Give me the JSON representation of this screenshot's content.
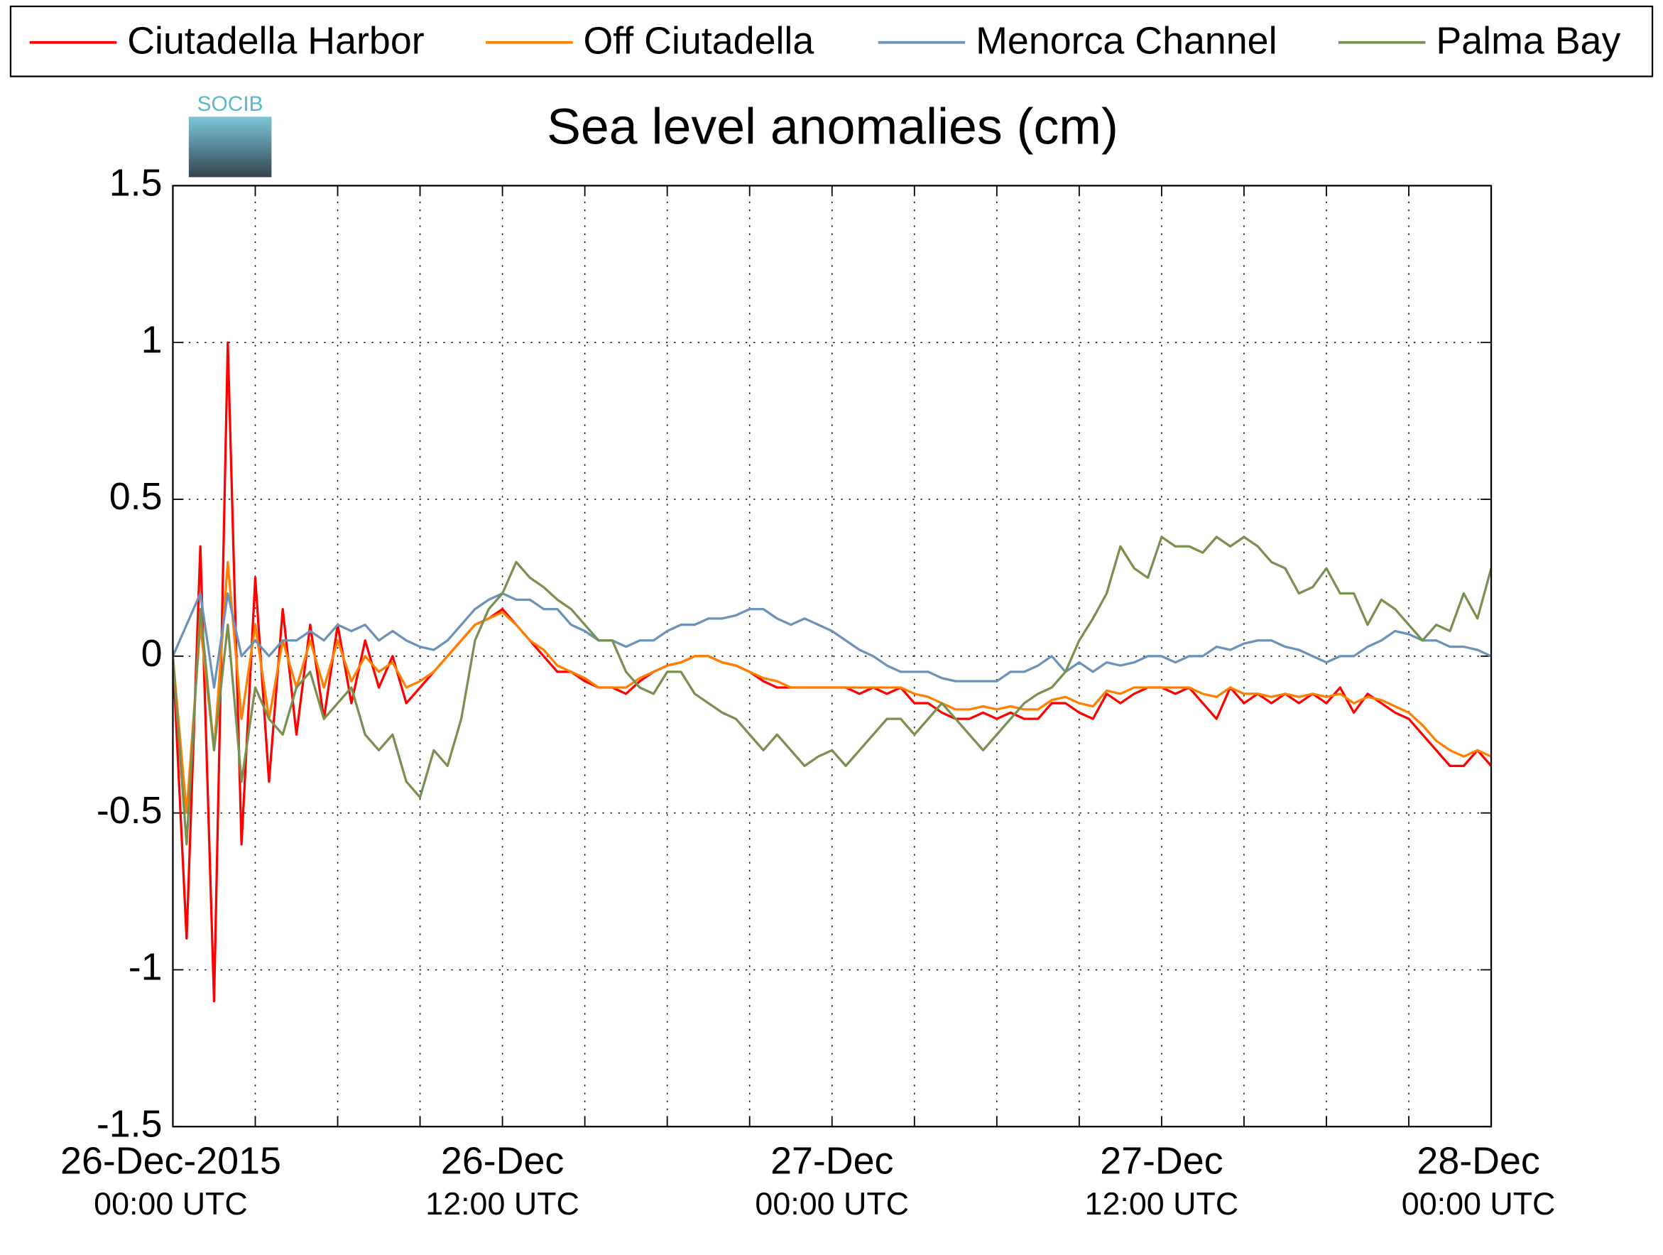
{
  "chart_data": {
    "type": "line",
    "title": "Sea level anomalies (cm)",
    "logo_text": "SOCIB",
    "x": [
      "2015-12-26T00:00",
      "2015-12-26T00:30",
      "2015-12-26T01:00",
      "2015-12-26T01:30",
      "2015-12-26T02:00",
      "2015-12-26T02:30",
      "2015-12-26T03:00",
      "2015-12-26T03:30",
      "2015-12-26T04:00",
      "2015-12-26T04:30",
      "2015-12-26T05:00",
      "2015-12-26T05:30",
      "2015-12-26T06:00",
      "2015-12-26T06:30",
      "2015-12-26T07:00",
      "2015-12-26T07:30",
      "2015-12-26T08:00",
      "2015-12-26T08:30",
      "2015-12-26T09:00",
      "2015-12-26T09:30",
      "2015-12-26T10:00",
      "2015-12-26T10:30",
      "2015-12-26T11:00",
      "2015-12-26T11:30",
      "2015-12-26T12:00",
      "2015-12-26T12:30",
      "2015-12-26T13:00",
      "2015-12-26T13:30",
      "2015-12-26T14:00",
      "2015-12-26T14:30",
      "2015-12-26T15:00",
      "2015-12-26T15:30",
      "2015-12-26T16:00",
      "2015-12-26T16:30",
      "2015-12-26T17:00",
      "2015-12-26T17:30",
      "2015-12-26T18:00",
      "2015-12-26T18:30",
      "2015-12-26T19:00",
      "2015-12-26T19:30",
      "2015-12-26T20:00",
      "2015-12-26T20:30",
      "2015-12-26T21:00",
      "2015-12-26T21:30",
      "2015-12-26T22:00",
      "2015-12-26T22:30",
      "2015-12-26T23:00",
      "2015-12-26T23:30",
      "2015-12-27T00:00",
      "2015-12-27T00:30",
      "2015-12-27T01:00",
      "2015-12-27T01:30",
      "2015-12-27T02:00",
      "2015-12-27T02:30",
      "2015-12-27T03:00",
      "2015-12-27T03:30",
      "2015-12-27T04:00",
      "2015-12-27T04:30",
      "2015-12-27T05:00",
      "2015-12-27T05:30",
      "2015-12-27T06:00",
      "2015-12-27T06:30",
      "2015-12-27T07:00",
      "2015-12-27T07:30",
      "2015-12-27T08:00",
      "2015-12-27T08:30",
      "2015-12-27T09:00",
      "2015-12-27T09:30",
      "2015-12-27T10:00",
      "2015-12-27T10:30",
      "2015-12-27T11:00",
      "2015-12-27T11:30",
      "2015-12-27T12:00",
      "2015-12-27T12:30",
      "2015-12-27T13:00",
      "2015-12-27T13:30",
      "2015-12-27T14:00",
      "2015-12-27T14:30",
      "2015-12-27T15:00",
      "2015-12-27T15:30",
      "2015-12-27T16:00",
      "2015-12-27T16:30",
      "2015-12-27T17:00",
      "2015-12-27T17:30",
      "2015-12-27T18:00",
      "2015-12-27T18:30",
      "2015-12-27T19:00",
      "2015-12-27T19:30",
      "2015-12-27T20:00",
      "2015-12-27T20:30",
      "2015-12-27T21:00",
      "2015-12-27T21:30",
      "2015-12-27T22:00",
      "2015-12-27T22:30",
      "2015-12-27T23:00",
      "2015-12-27T23:30",
      "2015-12-28T00:00"
    ],
    "series": [
      {
        "name": "Ciutadella Harbor",
        "color": "#ff0000",
        "values": [
          0,
          -0.9,
          0.35,
          -1.1,
          1.0,
          -0.6,
          0.25,
          -0.4,
          0.15,
          -0.25,
          0.1,
          -0.2,
          0.1,
          -0.15,
          0.05,
          -0.1,
          0,
          -0.15,
          -0.1,
          -0.05,
          0,
          0.05,
          0.1,
          0.12,
          0.15,
          0.1,
          0.05,
          0,
          -0.05,
          -0.05,
          -0.08,
          -0.1,
          -0.1,
          -0.12,
          -0.08,
          -0.05,
          -0.03,
          -0.02,
          0,
          0,
          -0.02,
          -0.03,
          -0.05,
          -0.08,
          -0.1,
          -0.1,
          -0.1,
          -0.1,
          -0.1,
          -0.1,
          -0.12,
          -0.1,
          -0.12,
          -0.1,
          -0.15,
          -0.15,
          -0.18,
          -0.2,
          -0.2,
          -0.18,
          -0.2,
          -0.18,
          -0.2,
          -0.2,
          -0.15,
          -0.15,
          -0.18,
          -0.2,
          -0.12,
          -0.15,
          -0.12,
          -0.1,
          -0.1,
          -0.12,
          -0.1,
          -0.15,
          -0.2,
          -0.1,
          -0.15,
          -0.12,
          -0.15,
          -0.12,
          -0.15,
          -0.12,
          -0.15,
          -0.1,
          -0.18,
          -0.12,
          -0.15,
          -0.18,
          -0.2,
          -0.25,
          -0.3,
          -0.35,
          -0.35,
          -0.3,
          -0.35
        ]
      },
      {
        "name": "Off Ciutadella",
        "color": "#ff8000",
        "values": [
          0,
          -0.5,
          0.1,
          -0.3,
          0.3,
          -0.2,
          0.1,
          -0.2,
          0.05,
          -0.1,
          0.05,
          -0.1,
          0.05,
          -0.08,
          0,
          -0.05,
          -0.02,
          -0.1,
          -0.08,
          -0.05,
          0,
          0.05,
          0.1,
          0.12,
          0.14,
          0.1,
          0.05,
          0.02,
          -0.03,
          -0.05,
          -0.07,
          -0.1,
          -0.1,
          -0.1,
          -0.07,
          -0.05,
          -0.03,
          -0.02,
          0,
          0,
          -0.02,
          -0.03,
          -0.05,
          -0.07,
          -0.08,
          -0.1,
          -0.1,
          -0.1,
          -0.1,
          -0.1,
          -0.1,
          -0.1,
          -0.1,
          -0.1,
          -0.12,
          -0.13,
          -0.15,
          -0.17,
          -0.17,
          -0.16,
          -0.17,
          -0.16,
          -0.17,
          -0.17,
          -0.14,
          -0.13,
          -0.15,
          -0.16,
          -0.11,
          -0.12,
          -0.1,
          -0.1,
          -0.1,
          -0.1,
          -0.1,
          -0.12,
          -0.13,
          -0.1,
          -0.12,
          -0.12,
          -0.13,
          -0.12,
          -0.13,
          -0.12,
          -0.13,
          -0.12,
          -0.15,
          -0.13,
          -0.14,
          -0.16,
          -0.18,
          -0.22,
          -0.27,
          -0.3,
          -0.32,
          -0.3,
          -0.32
        ]
      },
      {
        "name": "Menorca Channel",
        "color": "#6b93b8",
        "values": [
          0,
          0.1,
          0.2,
          -0.1,
          0.2,
          0,
          0.05,
          0,
          0.05,
          0.05,
          0.08,
          0.05,
          0.1,
          0.08,
          0.1,
          0.05,
          0.08,
          0.05,
          0.03,
          0.02,
          0.05,
          0.1,
          0.15,
          0.18,
          0.2,
          0.18,
          0.18,
          0.15,
          0.15,
          0.1,
          0.08,
          0.05,
          0.05,
          0.03,
          0.05,
          0.05,
          0.08,
          0.1,
          0.1,
          0.12,
          0.12,
          0.13,
          0.15,
          0.15,
          0.12,
          0.1,
          0.12,
          0.1,
          0.08,
          0.05,
          0.02,
          0,
          -0.03,
          -0.05,
          -0.05,
          -0.05,
          -0.07,
          -0.08,
          -0.08,
          -0.08,
          -0.08,
          -0.05,
          -0.05,
          -0.03,
          0,
          -0.05,
          -0.02,
          -0.05,
          -0.02,
          -0.03,
          -0.02,
          0,
          0,
          -0.02,
          0,
          0,
          0.03,
          0.02,
          0.04,
          0.05,
          0.05,
          0.03,
          0.02,
          0,
          -0.02,
          0,
          0,
          0.03,
          0.05,
          0.08,
          0.07,
          0.05,
          0.05,
          0.03,
          0.03,
          0.02,
          0
        ]
      },
      {
        "name": "Palma Bay",
        "color": "#7a9050",
        "values": [
          0,
          -0.6,
          0.15,
          -0.3,
          0.1,
          -0.4,
          -0.1,
          -0.2,
          -0.25,
          -0.1,
          -0.05,
          -0.2,
          -0.15,
          -0.1,
          -0.25,
          -0.3,
          -0.25,
          -0.4,
          -0.45,
          -0.3,
          -0.35,
          -0.2,
          0.05,
          0.15,
          0.2,
          0.3,
          0.25,
          0.22,
          0.18,
          0.15,
          0.1,
          0.05,
          0.05,
          -0.05,
          -0.1,
          -0.12,
          -0.05,
          -0.05,
          -0.12,
          -0.15,
          -0.18,
          -0.2,
          -0.25,
          -0.3,
          -0.25,
          -0.3,
          -0.35,
          -0.32,
          -0.3,
          -0.35,
          -0.3,
          -0.25,
          -0.2,
          -0.2,
          -0.25,
          -0.2,
          -0.15,
          -0.2,
          -0.25,
          -0.3,
          -0.25,
          -0.2,
          -0.15,
          -0.12,
          -0.1,
          -0.05,
          0.05,
          0.12,
          0.2,
          0.35,
          0.28,
          0.25,
          0.38,
          0.35,
          0.35,
          0.33,
          0.38,
          0.35,
          0.38,
          0.35,
          0.3,
          0.28,
          0.2,
          0.22,
          0.28,
          0.2,
          0.2,
          0.1,
          0.18,
          0.15,
          0.1,
          0.05,
          0.1,
          0.08,
          0.2,
          0.12,
          0.28
        ]
      }
    ],
    "xlim": [
      "2015-12-26T00:00",
      "2015-12-28T00:00"
    ],
    "xticks": [
      {
        "value": "2015-12-26T00:00",
        "label": [
          "26-Dec-2015",
          "00:00 UTC"
        ]
      },
      "2015-12-26T03:00",
      "2015-12-26T06:00",
      "2015-12-26T09:00",
      {
        "value": "2015-12-26T12:00",
        "label": [
          "26-Dec",
          "12:00 UTC"
        ]
      },
      "2015-12-26T15:00",
      "2015-12-26T18:00",
      "2015-12-26T21:00",
      {
        "value": "2015-12-27T00:00",
        "label": [
          "27-Dec",
          "00:00 UTC"
        ]
      },
      "2015-12-27T03:00",
      "2015-12-27T06:00",
      "2015-12-27T09:00",
      {
        "value": "2015-12-27T12:00",
        "label": [
          "27-Dec",
          "12:00 UTC"
        ]
      },
      "2015-12-27T15:00",
      "2015-12-27T18:00",
      "2015-12-27T21:00",
      {
        "value": "2015-12-28T00:00",
        "label": [
          "28-Dec",
          "00:00 UTC"
        ]
      }
    ],
    "ylim": [
      -1.5,
      1.5
    ],
    "yticks": [
      -1.5,
      -1,
      -0.5,
      0,
      0.5,
      1,
      1.5
    ],
    "grid": true,
    "legend": "top"
  }
}
